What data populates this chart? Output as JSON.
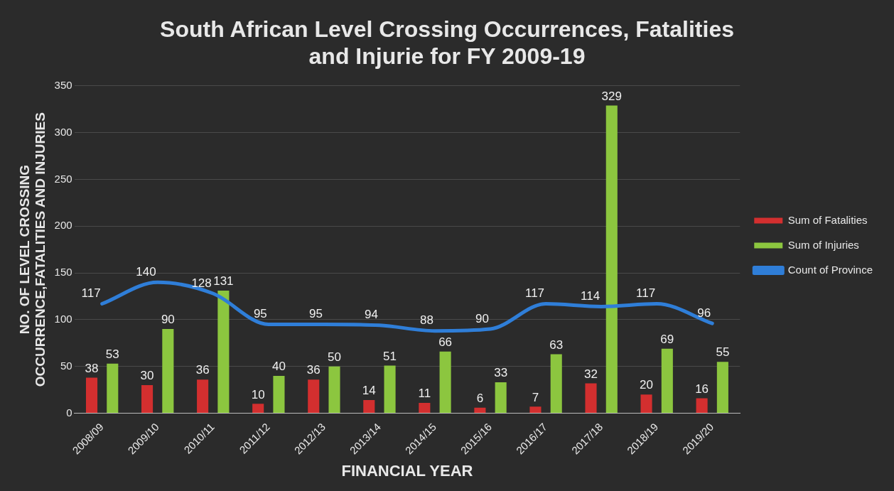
{
  "chart_data": {
    "type": "bar",
    "title": "South African Level Crossing Occurrences, Fatalities and Injurie for FY 2009-19",
    "xlabel": "FINANCIAL YEAR",
    "ylabel": "NO. OF LEVEL CROSSING OCCURRENCE,FATALITIES AND INJURIES",
    "categories": [
      "2008/09",
      "2009/10",
      "2010/11",
      "2011/12",
      "2012/13",
      "2013/14",
      "2014/15",
      "2015/16",
      "2016/17",
      "2017/18",
      "2018/19",
      "2019/20"
    ],
    "series": [
      {
        "name": "Sum of Fatalities",
        "color": "#d32f2f",
        "values": [
          38,
          30,
          36,
          10,
          36,
          14,
          11,
          6,
          7,
          32,
          20,
          16
        ]
      },
      {
        "name": "Sum of Injuries",
        "color": "#8cc63f",
        "values": [
          53,
          90,
          131,
          40,
          50,
          51,
          66,
          33,
          63,
          329,
          69,
          55
        ]
      },
      {
        "name": "Count of Province",
        "type": "line",
        "color": "#2f7ed8",
        "values": [
          117,
          140,
          128,
          95,
          95,
          94,
          88,
          90,
          117,
          114,
          117,
          96
        ]
      }
    ],
    "ylim": [
      0,
      350
    ],
    "yticks": [
      0,
      50,
      100,
      150,
      200,
      250,
      300,
      350
    ],
    "grid": "y",
    "legend": "right",
    "data_labels": true,
    "marker": "none"
  }
}
